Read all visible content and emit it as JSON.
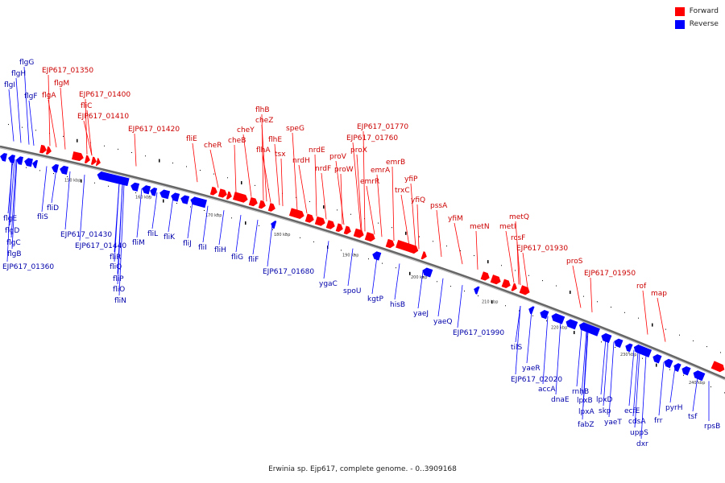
{
  "legend": {
    "forward_label": "Forward",
    "reverse_label": "Reverse",
    "forward_color": "#ff0000",
    "reverse_color": "#0000ff"
  },
  "caption": "Erwinia sp. Ejp617, complete genome. - 0..3909168",
  "scale_labels": [
    "150 kbp",
    "160 kbp",
    "170 kbp",
    "180 kbp",
    "190 kbp",
    "200 kbp",
    "210 kbp",
    "220 kbp",
    "230 kbp",
    "240 kbp"
  ],
  "forward_labels": [
    "EJP617_01350",
    "flgM",
    "flgA",
    "EJP617_01400",
    "fliC",
    "EJP617_01410",
    "EJP617_01420",
    "fliE",
    "cheR",
    "flhB",
    "cheZ",
    "cheY",
    "cheB",
    "flhE",
    "flhA",
    "tsx",
    "speG",
    "nrdH",
    "nrdE",
    "nrdF",
    "proV",
    "proW",
    "proX",
    "EJP617_01760",
    "EJP617_01770",
    "emrA",
    "emrR",
    "emrB",
    "yfiP",
    "trxC",
    "yfiQ",
    "pssA",
    "yfiM",
    "metN",
    "metQ",
    "metI",
    "rcsF",
    "EJP617_01930",
    "proS",
    "EJP617_01950",
    "rof",
    "map"
  ],
  "reverse_labels": [
    "flgG",
    "flgH",
    "flgI",
    "flgF",
    "flgE",
    "flgD",
    "flgC",
    "flgB",
    "EJP617_01360",
    "fliD",
    "fliS",
    "EJP617_01430",
    "EJP617_01440",
    "fliR",
    "fliQ",
    "fliP",
    "fliO",
    "fliN",
    "fliM",
    "fliL",
    "fliK",
    "fliJ",
    "fliI",
    "fliH",
    "fliG",
    "fliF",
    "EJP617_01680",
    "ygaC",
    "spoU",
    "kgtP",
    "hisB",
    "yaeJ",
    "yaeQ",
    "EJP617_01990",
    "tilS",
    "yaeR",
    "EJP617_02020",
    "accA",
    "dnaE",
    "rnhB",
    "lpxB",
    "lpxD",
    "lpxA",
    "skp",
    "fabZ",
    "yaeT",
    "ecfE",
    "cdsA",
    "uppS",
    "dxr",
    "frr",
    "pyrH",
    "tsf",
    "rpsB"
  ]
}
